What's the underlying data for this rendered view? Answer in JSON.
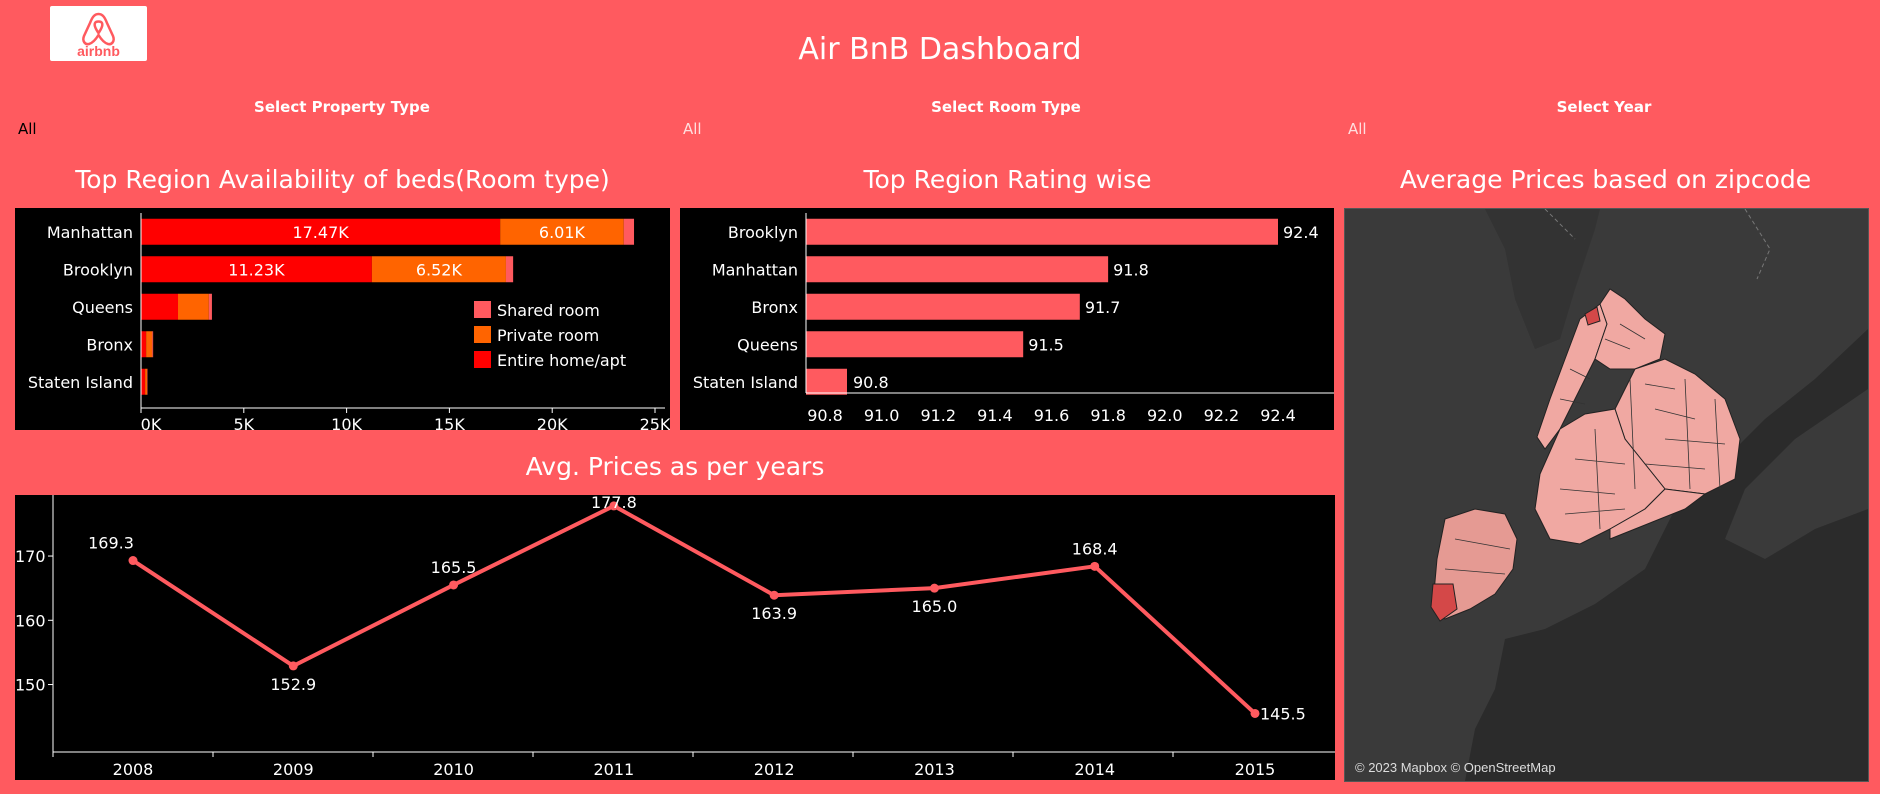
{
  "dashboard": {
    "title": "Air BnB Dashboard",
    "logo_text": "airbnb",
    "filters": [
      {
        "label": "Select Property Type",
        "value": "All"
      },
      {
        "label": "Select Room Type",
        "value": "All"
      },
      {
        "label": "Select Year",
        "value": "All"
      }
    ]
  },
  "colors": {
    "background": "#FF5A5F",
    "shared_room": "#FF5A5F",
    "private_room": "#FF6400",
    "entire_home": "#FF0000",
    "rating_bar": "#FF5A5F",
    "line": "#FF5A5F",
    "map_zip": "#F4A19C"
  },
  "map": {
    "title": "Average Prices based on zipcode",
    "attribution": "© 2023 Mapbox © OpenStreetMap"
  },
  "chart_data": [
    {
      "type": "bar",
      "orientation": "horizontal",
      "stacked": true,
      "title": "Top Region Availability of beds(Room type)",
      "categories": [
        "Manhattan",
        "Brooklyn",
        "Queens",
        "Bronx",
        "Staten Island"
      ],
      "series": [
        {
          "name": "Entire home/apt",
          "values": [
            17470,
            11230,
            1800,
            250,
            200
          ]
        },
        {
          "name": "Private room",
          "values": [
            6010,
            6520,
            1500,
            300,
            100
          ]
        },
        {
          "name": "Shared room",
          "values": [
            500,
            350,
            150,
            40,
            20
          ]
        }
      ],
      "data_labels": [
        [
          "17.47K",
          "6.01K",
          ""
        ],
        [
          "11.23K",
          "6.52K",
          ""
        ],
        [
          "",
          "",
          ""
        ],
        [
          "",
          "",
          ""
        ],
        [
          "",
          "",
          ""
        ]
      ],
      "xticks": [
        "0K",
        "5K",
        "10K",
        "15K",
        "20K",
        "25K"
      ],
      "xlim": [
        0,
        25000
      ],
      "legend": "bottom-right"
    },
    {
      "type": "bar",
      "orientation": "horizontal",
      "title": "Top Region Rating wise",
      "categories": [
        "Brooklyn",
        "Manhattan",
        "Bronx",
        "Queens",
        "Staten Island"
      ],
      "values": [
        92.4,
        91.8,
        91.7,
        91.5,
        90.8
      ],
      "labels": [
        "92.4",
        "91.8",
        "91.7",
        "91.5",
        "90.8"
      ],
      "xticks": [
        "90.8",
        "91.0",
        "91.2",
        "91.4",
        "91.6",
        "91.8",
        "92.0",
        "92.2",
        "92.4"
      ],
      "xlim": [
        90.7,
        92.6
      ]
    },
    {
      "type": "line",
      "title": "Avg. Prices as per years",
      "x": [
        "2008",
        "2009",
        "2010",
        "2011",
        "2012",
        "2013",
        "2014",
        "2015"
      ],
      "values": [
        169.3,
        152.9,
        165.5,
        177.8,
        163.9,
        165.0,
        168.4,
        145.5
      ],
      "labels": [
        "169.3",
        "152.9",
        "165.5",
        "177.8",
        "163.9",
        "165.0",
        "168.4",
        "145.5"
      ],
      "label_side": [
        "above",
        "below",
        "above",
        "above",
        "below",
        "below",
        "above",
        "right"
      ],
      "yticks": [
        "150",
        "160",
        "170"
      ],
      "ylim": [
        139.5,
        179.5
      ]
    }
  ]
}
